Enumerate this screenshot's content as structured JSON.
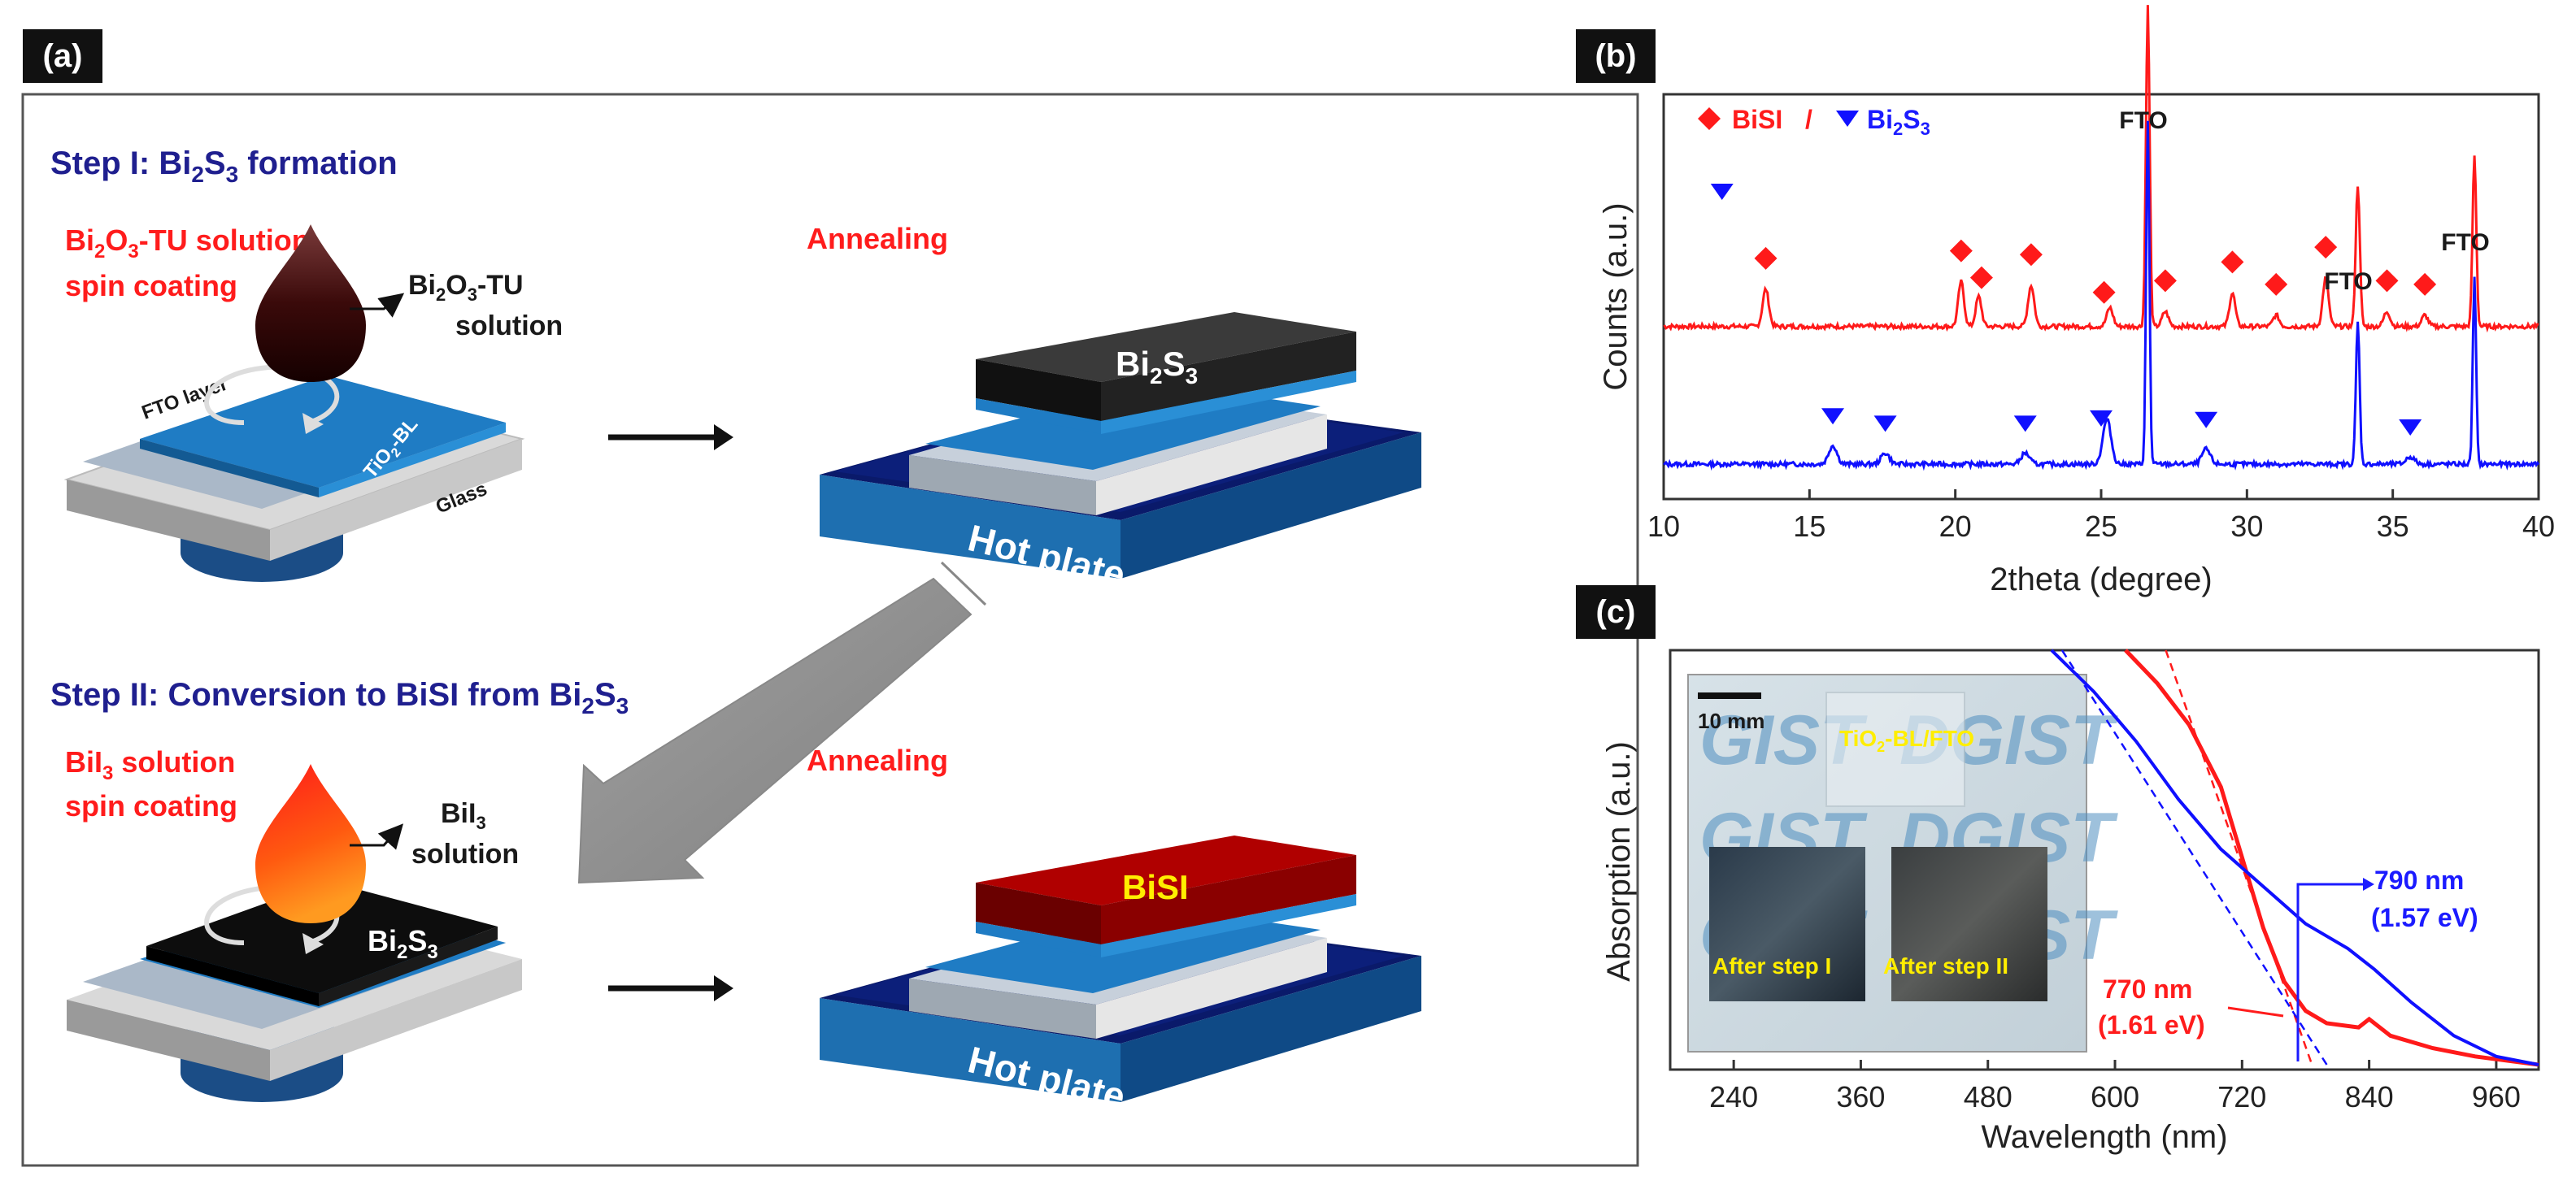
{
  "panel_labels": {
    "a": "(a)",
    "b": "(b)",
    "c": "(c)"
  },
  "schematic": {
    "step1": {
      "heading_pre": "Step I: Bi",
      "heading_s1": "2",
      "heading_mid": "S",
      "heading_s2": "3",
      "heading_post": " formation",
      "spin_label_line1_pre": "Bi",
      "spin_label_line1_s1": "2",
      "spin_label_line1_mid": "O",
      "spin_label_line1_s2": "3",
      "spin_label_line1_post": "-TU solution",
      "spin_label_line2": "spin coating",
      "drop_label_line1_pre": "Bi",
      "drop_label_line1_s1": "2",
      "drop_label_line1_mid": "O",
      "drop_label_line1_s2": "3",
      "drop_label_line1_post": "-TU",
      "drop_label_line2": "solution",
      "fto_layer": "FTO layer",
      "tio2_bl_pre": "TiO",
      "tio2_bl_s": "2",
      "tio2_bl_post": "-BL",
      "glass": "Glass",
      "annealing": "Annealing",
      "film_pre": "Bi",
      "film_s1": "2",
      "film_mid": "S",
      "film_s2": "3",
      "hot_plate": "Hot plate"
    },
    "step2": {
      "heading_pre": "Step II: Conversion to BiSI from Bi",
      "heading_s1": "2",
      "heading_mid": "S",
      "heading_s2": "3",
      "spin_label_line1_pre": "BiI",
      "spin_label_line1_s": "3",
      "spin_label_line1_post": " solution",
      "spin_label_line2": "spin coating",
      "drop_label_line1_pre": "BiI",
      "drop_label_line1_s": "3",
      "drop_label_line2": "solution",
      "substrate_pre": "Bi",
      "substrate_s1": "2",
      "substrate_mid": "S",
      "substrate_s2": "3",
      "annealing": "Annealing",
      "film": "BiSI",
      "hot_plate": "Hot plate"
    }
  },
  "colors": {
    "red_text": "#ff1c1c",
    "heading_blue": "#1f1f8f",
    "bisi_series": "#ff1a1a",
    "bi2s3_series": "#1010ff",
    "plate_blue": "#1e6fb0",
    "plate_dark": "#0a1a6a",
    "bisi_film": "#8a0000"
  },
  "chart_data": [
    {
      "panel": "b",
      "type": "line",
      "xlabel": "2theta (degree)",
      "ylabel": "Counts (a.u.)",
      "xlim": [
        10,
        40
      ],
      "x_ticks": [
        "10",
        "15",
        "20",
        "25",
        "30",
        "35",
        "40"
      ],
      "legend": {
        "bisi": "BiSI",
        "sep": "/",
        "bi2s3_pre": "Bi",
        "bi2s3_s1": "2",
        "bi2s3_mid": "S",
        "bi2s3_s2": "3"
      },
      "annotations": [
        "FTO",
        "FTO",
        "FTO"
      ],
      "series": [
        {
          "name": "BiSI",
          "color": "#ff1a1a",
          "baseline": 0.42,
          "peaks": [
            [
              13.5,
              0.1,
              0.15
            ],
            [
              20.2,
              0.12,
              0.14
            ],
            [
              20.8,
              0.08,
              0.14
            ],
            [
              22.6,
              0.11,
              0.15
            ],
            [
              25.3,
              0.05,
              0.15
            ],
            [
              26.6,
              0.86,
              0.09
            ],
            [
              27.2,
              0.04,
              0.15
            ],
            [
              29.5,
              0.09,
              0.14
            ],
            [
              31.0,
              0.03,
              0.15
            ],
            [
              32.7,
              0.13,
              0.14
            ],
            [
              33.8,
              0.38,
              0.1
            ],
            [
              34.8,
              0.04,
              0.15
            ],
            [
              36.1,
              0.03,
              0.15
            ],
            [
              37.8,
              0.46,
              0.09
            ]
          ],
          "markers": [
            13.5,
            20.2,
            20.9,
            22.6,
            25.1,
            27.2,
            29.5,
            31.0,
            32.7,
            34.8,
            36.1
          ]
        },
        {
          "name": "Bi2S3",
          "color": "#1010ff",
          "baseline": 0.05,
          "peaks": [
            [
              15.8,
              0.05,
              0.2
            ],
            [
              17.6,
              0.03,
              0.2
            ],
            [
              22.4,
              0.03,
              0.2
            ],
            [
              25.2,
              0.12,
              0.2
            ],
            [
              26.6,
              0.92,
              0.08
            ],
            [
              28.6,
              0.04,
              0.2
            ],
            [
              33.8,
              0.38,
              0.09
            ],
            [
              35.6,
              0.02,
              0.2
            ],
            [
              37.8,
              0.5,
              0.08
            ]
          ],
          "markers": [
            15.8,
            17.6,
            22.4,
            25.0,
            28.6,
            35.6
          ],
          "legend_marker": 12.0
        }
      ]
    },
    {
      "panel": "c",
      "type": "line",
      "xlabel": "Wavelength (nm)",
      "ylabel": "Absorption (a.u.)",
      "xlim": [
        180,
        1000
      ],
      "x_ticks": [
        "240",
        "360",
        "480",
        "600",
        "720",
        "840",
        "960"
      ],
      "series": [
        {
          "name": "After step II (BiSI)",
          "color": "#ff1a1a",
          "points": [
            [
              610,
              1.0
            ],
            [
              640,
              0.92
            ],
            [
              670,
              0.82
            ],
            [
              700,
              0.67
            ],
            [
              720,
              0.5
            ],
            [
              740,
              0.33
            ],
            [
              760,
              0.2
            ],
            [
              780,
              0.13
            ],
            [
              800,
              0.1
            ],
            [
              830,
              0.09
            ],
            [
              840,
              0.11
            ],
            [
              860,
              0.07
            ],
            [
              900,
              0.04
            ],
            [
              940,
              0.02
            ],
            [
              1000,
              0.0
            ]
          ],
          "tangent": [
            [
              648,
              1.0
            ],
            [
              786,
              0.0
            ]
          ]
        },
        {
          "name": "After step I (Bi2S3)",
          "color": "#1010ff",
          "points": [
            [
              540,
              1.0
            ],
            [
              580,
              0.9
            ],
            [
              620,
              0.78
            ],
            [
              660,
              0.64
            ],
            [
              700,
              0.52
            ],
            [
              740,
              0.43
            ],
            [
              780,
              0.34
            ],
            [
              820,
              0.28
            ],
            [
              835,
              0.25
            ],
            [
              845,
              0.23
            ],
            [
              880,
              0.15
            ],
            [
              920,
              0.07
            ],
            [
              960,
              0.02
            ],
            [
              1000,
              0.0
            ]
          ],
          "tangent": [
            [
              550,
              1.0
            ],
            [
              800,
              0.0
            ]
          ]
        }
      ],
      "annotations": [
        {
          "label_line1": "790 nm",
          "label_line2": "(1.57 eV)",
          "color": "#1b1bff",
          "x": 790
        },
        {
          "label_line1": "770 nm",
          "label_line2": "(1.61 eV)",
          "color": "#ff1c1c",
          "x": 775
        }
      ],
      "inset": {
        "scale_bar": "10 mm",
        "substrate_pre": "TiO",
        "substrate_s": "2",
        "substrate_post": "-BL/FTO",
        "sample1": "After step I",
        "sample2": "After step II",
        "watermark_1": "GIST",
        "watermark_2": "DGIST"
      }
    }
  ]
}
